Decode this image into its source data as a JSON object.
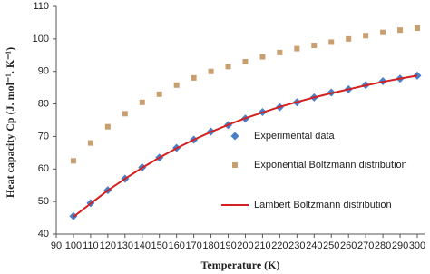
{
  "chart_data": {
    "type": "line",
    "xlabel": "Temperature (K)",
    "ylabel": "Heat capacity Cp (J. mol⁻¹. K⁻¹)",
    "x": [
      100,
      110,
      120,
      130,
      140,
      150,
      160,
      170,
      180,
      190,
      200,
      210,
      220,
      230,
      240,
      250,
      260,
      270,
      280,
      290,
      300
    ],
    "series": [
      {
        "name": "Experimental data",
        "color": "#4a7ec8",
        "marker": "diamond",
        "values": [
          45.5,
          49.5,
          53.5,
          57,
          60.5,
          63.5,
          66.5,
          69,
          71.5,
          73.5,
          75.5,
          77.5,
          79,
          80.5,
          82,
          83.5,
          84.5,
          85.8,
          87,
          87.8,
          88.7
        ]
      },
      {
        "name": "Exponential Boltzmann distribution",
        "color": "#c8a070",
        "marker": "square",
        "values": [
          62.5,
          68,
          73,
          77,
          80.5,
          83,
          85.8,
          88,
          90,
          91.5,
          93,
          94.5,
          95.8,
          97,
          98,
          99,
          100,
          101,
          102,
          102.7,
          103.3
        ]
      },
      {
        "name": "Lambert Boltzmann distribution",
        "color": "#d42020",
        "marker": "none",
        "values": [
          45.3,
          49.4,
          53.4,
          57,
          60.4,
          63.5,
          66.4,
          69,
          71.4,
          73.6,
          75.6,
          77.4,
          79.1,
          80.6,
          82,
          83.3,
          84.5,
          85.7,
          86.8,
          87.8,
          88.7
        ]
      }
    ],
    "xlim": [
      90,
      300
    ],
    "xticks": [
      90,
      100,
      110,
      120,
      130,
      140,
      150,
      160,
      170,
      180,
      190,
      200,
      210,
      220,
      230,
      240,
      250,
      260,
      270,
      280,
      290,
      300
    ],
    "ylim": [
      40,
      110
    ],
    "yticks": [
      40,
      50,
      60,
      70,
      80,
      90,
      100,
      110
    ],
    "grid": false,
    "legend": "right"
  }
}
